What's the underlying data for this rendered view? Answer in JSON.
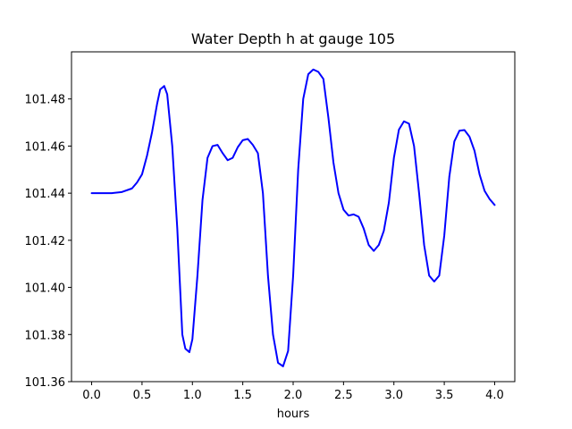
{
  "chart_data": {
    "type": "line",
    "title": "Water Depth h at gauge 105",
    "xlabel": "hours",
    "ylabel": "",
    "xlim": [
      -0.2,
      4.2
    ],
    "ylim": [
      101.36,
      101.5
    ],
    "xticks": [
      0.0,
      0.5,
      1.0,
      1.5,
      2.0,
      2.5,
      3.0,
      3.5,
      4.0
    ],
    "xtick_labels": [
      "0.0",
      "0.5",
      "1.0",
      "1.5",
      "2.0",
      "2.5",
      "3.0",
      "3.5",
      "4.0"
    ],
    "yticks": [
      101.36,
      101.38,
      101.4,
      101.42,
      101.44,
      101.46,
      101.48
    ],
    "ytick_labels": [
      "101.36",
      "101.38",
      "101.40",
      "101.42",
      "101.44",
      "101.46",
      "101.48"
    ],
    "grid": false,
    "series": [
      {
        "color": "#0000ff",
        "x": [
          0.0,
          0.1,
          0.2,
          0.3,
          0.4,
          0.45,
          0.5,
          0.55,
          0.6,
          0.65,
          0.68,
          0.72,
          0.75,
          0.8,
          0.85,
          0.9,
          0.93,
          0.97,
          1.0,
          1.05,
          1.1,
          1.15,
          1.2,
          1.25,
          1.3,
          1.35,
          1.4,
          1.45,
          1.5,
          1.55,
          1.6,
          1.65,
          1.7,
          1.75,
          1.8,
          1.85,
          1.9,
          1.95,
          2.0,
          2.05,
          2.1,
          2.15,
          2.2,
          2.25,
          2.3,
          2.35,
          2.4,
          2.45,
          2.5,
          2.55,
          2.6,
          2.65,
          2.7,
          2.75,
          2.8,
          2.85,
          2.9,
          2.95,
          3.0,
          3.05,
          3.1,
          3.15,
          3.2,
          3.25,
          3.3,
          3.35,
          3.4,
          3.45,
          3.5,
          3.55,
          3.6,
          3.65,
          3.7,
          3.75,
          3.8,
          3.85,
          3.9,
          3.95,
          4.0
        ],
        "y": [
          101.44,
          101.44,
          101.44,
          101.4405,
          101.442,
          101.4445,
          101.448,
          101.456,
          101.466,
          101.478,
          101.484,
          101.4855,
          101.482,
          101.46,
          101.425,
          101.38,
          101.374,
          101.3725,
          101.378,
          101.405,
          101.437,
          101.455,
          101.46,
          101.4605,
          101.457,
          101.454,
          101.455,
          101.4595,
          101.4625,
          101.463,
          101.4605,
          101.457,
          101.44,
          101.405,
          101.38,
          101.368,
          101.3665,
          101.373,
          101.405,
          101.45,
          101.48,
          101.4905,
          101.4925,
          101.4915,
          101.4885,
          101.472,
          101.453,
          101.44,
          101.433,
          101.4305,
          101.431,
          101.43,
          101.425,
          101.418,
          101.4155,
          101.418,
          101.424,
          101.436,
          101.455,
          101.467,
          101.4705,
          101.4695,
          101.46,
          101.44,
          101.418,
          101.405,
          101.4025,
          101.405,
          101.422,
          101.447,
          101.462,
          101.4665,
          101.4668,
          101.464,
          101.458,
          101.448,
          101.441,
          101.4375,
          101.435
        ]
      }
    ]
  }
}
